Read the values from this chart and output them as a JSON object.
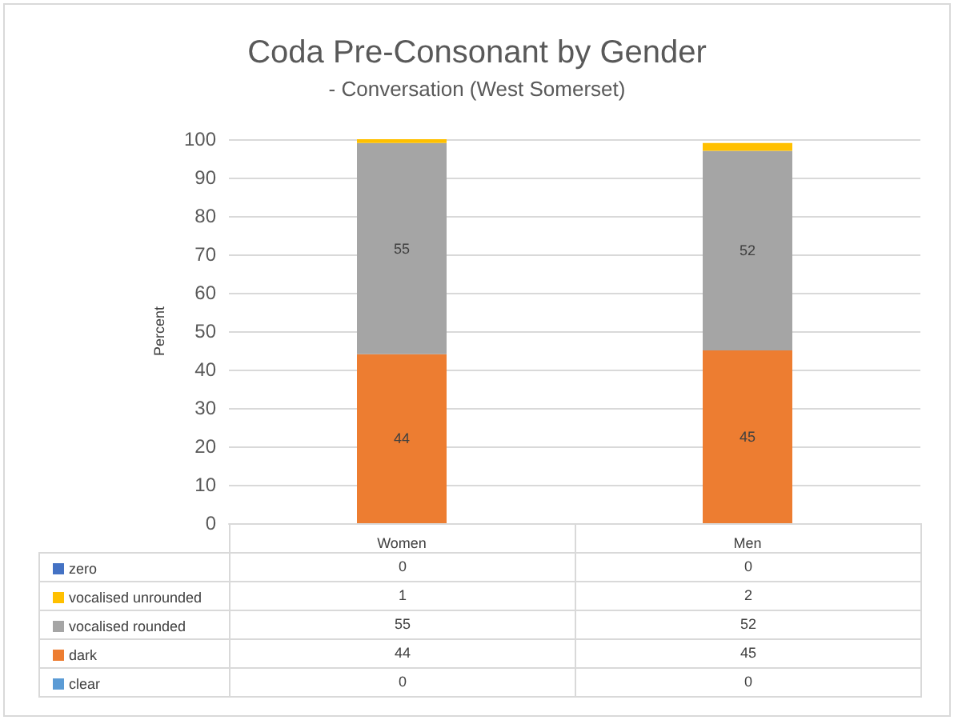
{
  "chart_data": {
    "type": "bar",
    "title": "Coda Pre-Consonant by Gender",
    "subtitle": "- Conversation (West Somerset)",
    "ylabel": "Percent",
    "categories": [
      "Women",
      "Men"
    ],
    "stacked": true,
    "ylim": [
      0,
      100
    ],
    "yticks": [
      0,
      10,
      20,
      30,
      40,
      50,
      60,
      70,
      80,
      90,
      100
    ],
    "grid": "y",
    "legend": "bottom left",
    "series": [
      {
        "name": "clear",
        "color": "#5b9bd5",
        "values": [
          0,
          0
        ],
        "value_labels": [
          "0",
          "0"
        ]
      },
      {
        "name": "dark",
        "color": "#ed7d31",
        "values": [
          44,
          45
        ],
        "value_labels": [
          "44",
          "45"
        ]
      },
      {
        "name": "vocalised rounded",
        "color": "#a5a5a5",
        "values": [
          55,
          52
        ],
        "value_labels": [
          "55",
          "52"
        ]
      },
      {
        "name": "vocalised unrounded",
        "color": "#ffc000",
        "values": [
          1,
          2
        ],
        "value_labels": [
          "1",
          "2"
        ]
      },
      {
        "name": "zero",
        "color": "#4472c4",
        "values": [
          0,
          0
        ],
        "value_labels": [
          "0",
          "0"
        ]
      }
    ]
  }
}
